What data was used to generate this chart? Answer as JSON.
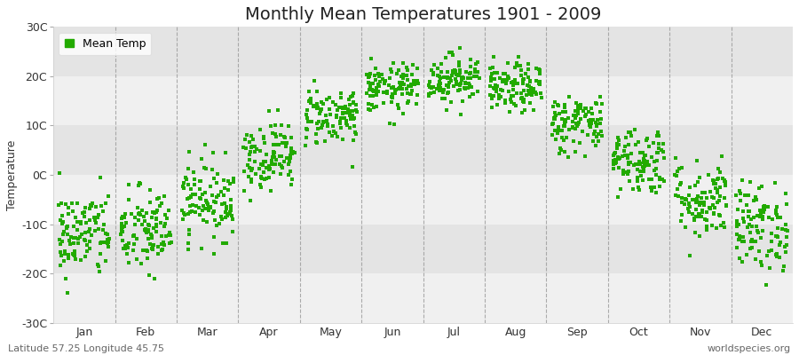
{
  "title": "Monthly Mean Temperatures 1901 - 2009",
  "ylabel": "Temperature",
  "ylim": [
    -30,
    30
  ],
  "yticks": [
    -30,
    -20,
    -10,
    0,
    10,
    20,
    30
  ],
  "ytick_labels": [
    "-30C",
    "-20C",
    "-10C",
    "0C",
    "10C",
    "20C",
    "30C"
  ],
  "months": [
    "Jan",
    "Feb",
    "Mar",
    "Apr",
    "May",
    "Jun",
    "Jul",
    "Aug",
    "Sep",
    "Oct",
    "Nov",
    "Dec"
  ],
  "month_centers": [
    0.5,
    1.5,
    2.5,
    3.5,
    4.5,
    5.5,
    6.5,
    7.5,
    8.5,
    9.5,
    10.5,
    11.5
  ],
  "month_means": [
    -12.0,
    -11.5,
    -5.0,
    4.0,
    12.0,
    17.5,
    19.5,
    17.5,
    10.5,
    3.0,
    -5.0,
    -10.5
  ],
  "month_stds": [
    4.5,
    4.5,
    4.0,
    3.5,
    3.0,
    2.5,
    2.5,
    2.5,
    3.0,
    3.5,
    4.0,
    4.5
  ],
  "n_years": 109,
  "dot_color": "#22aa00",
  "dot_size": 6,
  "dot_marker": "s",
  "fig_bg": "#ffffff",
  "plot_bg": "#ffffff",
  "band_light": "#f0f0f0",
  "band_dark": "#e4e4e4",
  "vline_color": "#999999",
  "legend_label": "Mean Temp",
  "footer_left": "Latitude 57.25 Longitude 45.75",
  "footer_right": "worldspecies.org",
  "title_fontsize": 14,
  "axis_fontsize": 9,
  "footer_fontsize": 8
}
